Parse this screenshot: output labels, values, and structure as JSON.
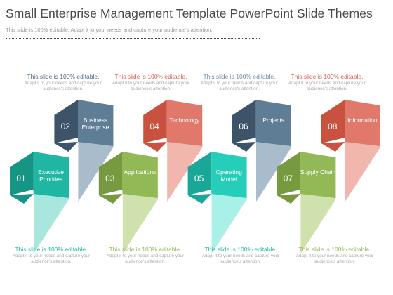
{
  "title": "Small Enterprise Management  Template PowerPoint Slide Themes",
  "subtitle": "This slide is 100% editable. Adapt it to your needs and capture your audience's attention.",
  "steps": [
    {
      "num": "01",
      "label": "Executive Priorities",
      "color": "#1fb7a3",
      "dark": "#169484",
      "light": "#a9e6dd",
      "level": "bottom"
    },
    {
      "num": "02",
      "label": "Business Enterprise",
      "color": "#5f7e96",
      "dark": "#3d5468",
      "light": "#a9bccb",
      "level": "top"
    },
    {
      "num": "03",
      "label": "Applications",
      "color": "#93b957",
      "dark": "#779a41",
      "light": "#cfe2ad",
      "level": "bottom"
    },
    {
      "num": "04",
      "label": "Technology",
      "color": "#e0796c",
      "dark": "#c9513f",
      "light": "#f1b7ae",
      "level": "top"
    },
    {
      "num": "05",
      "label": "Operating Model",
      "color": "#26cdb8",
      "dark": "#19a898",
      "light": "#a9f0e6",
      "level": "bottom"
    },
    {
      "num": "06",
      "label": "Projects",
      "color": "#5f7e96",
      "dark": "#3d5468",
      "light": "#a9bccb",
      "level": "top"
    },
    {
      "num": "07",
      "label": "Supply Chain",
      "color": "#93b957",
      "dark": "#779a41",
      "light": "#cfe2ad",
      "level": "bottom"
    },
    {
      "num": "08",
      "label": "Information",
      "color": "#e0796c",
      "dark": "#c9513f",
      "light": "#f1b7ae",
      "level": "top"
    }
  ],
  "captions": {
    "top": [
      {
        "heading": "This slide is 100% editable.",
        "body": "Adapt it to your needs and capture your audience's attention.",
        "color": "#4e6b82"
      },
      {
        "heading": "This slide is 100% editable.",
        "body": "Adapt it to your needs and capture your audience's attention.",
        "color": "#d9604f"
      },
      {
        "heading": "This slide is 100% editable.",
        "body": "Adapt it to your needs and capture your audience's attention.",
        "color": "#6f8ea6"
      },
      {
        "heading": "This slide is 100% editable.",
        "body": "Adapt it to your needs and capture your audience's attention.",
        "color": "#d9604f"
      }
    ],
    "bottom": [
      {
        "heading": "This slide is 100% editable.",
        "body": "Adapt it to your needs and capture your audience's attention.",
        "color": "#1fb7a3"
      },
      {
        "heading": "This slide is 100% editable.",
        "body": "Adapt it to your needs and capture your audience's attention.",
        "color": "#93b957"
      },
      {
        "heading": "This slide is 100% editable.",
        "body": "Adapt it to your needs and capture your audience's attention.",
        "color": "#1fb7a3"
      },
      {
        "heading": "This slide is 100% editable.",
        "body": "Adapt it to your needs and capture your audience's attention.",
        "color": "#93b957"
      }
    ]
  }
}
